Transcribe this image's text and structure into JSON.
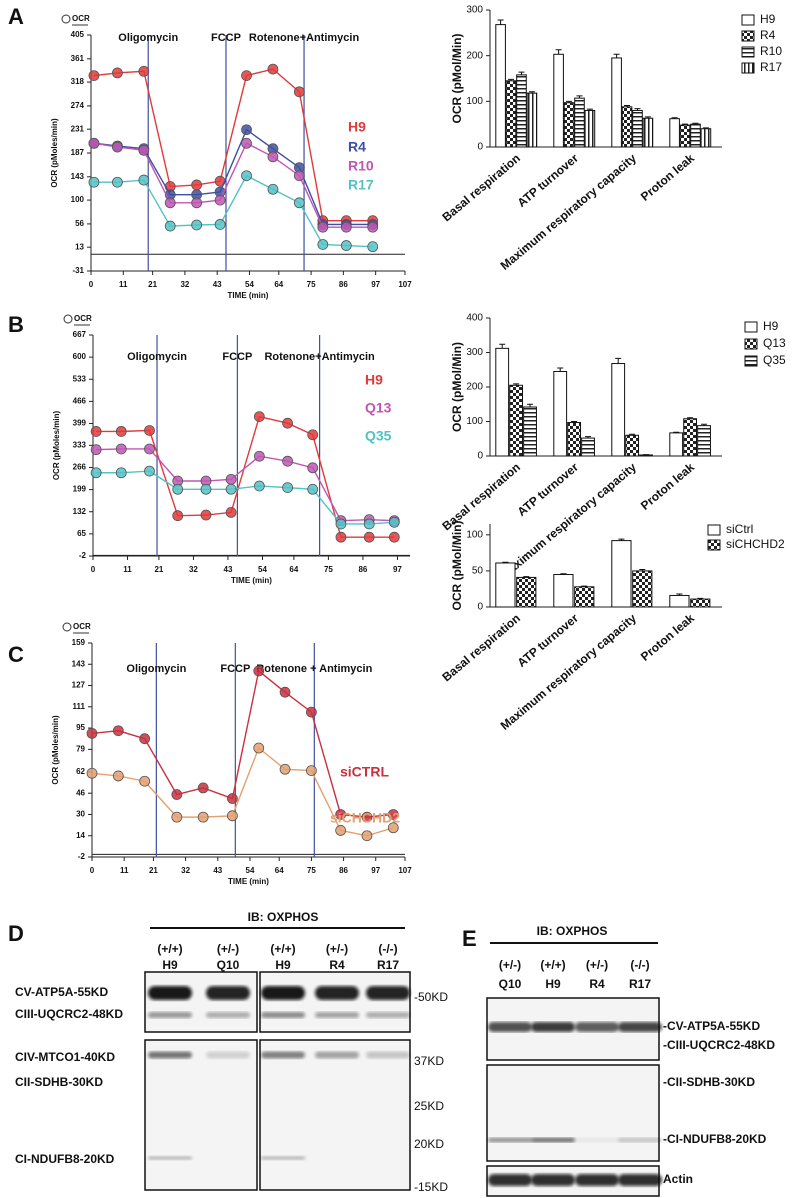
{
  "chart_data": [
    {
      "type": "line",
      "panel": "A",
      "corner_label": "OCR",
      "x_label": "TIME (min)",
      "y_label": "OCR (pMoles/min)",
      "xlim": [
        0,
        107
      ],
      "xticks": [
        0,
        11,
        21,
        32,
        43,
        54,
        64,
        75,
        86,
        97,
        107
      ],
      "ylim": [
        -31,
        405
      ],
      "yticks": [
        -31,
        13,
        56,
        100,
        143,
        187,
        231,
        274,
        318,
        361,
        405
      ],
      "injections": [
        {
          "x": 19.5,
          "label": "Oligomycin"
        },
        {
          "x": 46,
          "label": "FCCP"
        },
        {
          "x": 72.6,
          "label": "Rotenone+Antimycin"
        }
      ],
      "x": [
        1,
        9,
        18,
        27,
        36,
        44,
        53,
        62,
        71,
        79,
        87,
        96
      ],
      "series": [
        {
          "name": "H9",
          "color": "#e03a3a",
          "values": [
            330,
            335,
            338,
            125,
            128,
            135,
            330,
            342,
            300,
            62,
            62,
            62
          ]
        },
        {
          "name": "R4",
          "color": "#3f4fa0",
          "values": [
            205,
            200,
            195,
            110,
            110,
            115,
            230,
            195,
            160,
            55,
            55,
            55
          ]
        },
        {
          "name": "R10",
          "color": "#c056b4",
          "values": [
            205,
            198,
            192,
            95,
            95,
            100,
            205,
            180,
            145,
            50,
            50,
            50
          ]
        },
        {
          "name": "R17",
          "color": "#52c2c6",
          "values": [
            133,
            133,
            137,
            52,
            54,
            55,
            145,
            120,
            95,
            18,
            16,
            14
          ]
        }
      ]
    },
    {
      "type": "line",
      "panel": "B",
      "corner_label": "OCR",
      "x_label": "TIME (min)",
      "y_label": "OCR (pMoles/min)",
      "xlim": [
        0,
        101
      ],
      "xticks": [
        0,
        11,
        21,
        32,
        43,
        54,
        64,
        75,
        86,
        97
      ],
      "ylim": [
        -2,
        667
      ],
      "yticks": [
        -2,
        65,
        132,
        199,
        266,
        333,
        399,
        466,
        533,
        600,
        667
      ],
      "injections": [
        {
          "x": 20.4,
          "label": "Oligomycin"
        },
        {
          "x": 46,
          "label": "FCCP"
        },
        {
          "x": 72.2,
          "label": "Rotenone+Antimycin"
        }
      ],
      "x": [
        1,
        9,
        18,
        27,
        36,
        44,
        53,
        62,
        70,
        79,
        88,
        96
      ],
      "series": [
        {
          "name": "H9",
          "color": "#e03a3a",
          "values": [
            375,
            375,
            378,
            120,
            122,
            130,
            420,
            400,
            365,
            55,
            55,
            55
          ]
        },
        {
          "name": "Q13",
          "color": "#c056b4",
          "values": [
            320,
            322,
            322,
            225,
            225,
            230,
            300,
            285,
            265,
            105,
            108,
            105
          ]
        },
        {
          "name": "Q35",
          "color": "#52c2c6",
          "values": [
            250,
            250,
            255,
            200,
            200,
            200,
            210,
            205,
            200,
            95,
            95,
            100
          ]
        }
      ]
    },
    {
      "type": "line",
      "panel": "C",
      "corner_label": "OCR",
      "x_label": "TIME (min)",
      "y_label": "OCR (pMoles/min)",
      "xlim": [
        0,
        107
      ],
      "xticks": [
        0,
        11,
        21,
        32,
        43,
        54,
        64,
        75,
        86,
        97,
        107
      ],
      "ylim": [
        -2,
        159
      ],
      "yticks": [
        -2,
        14,
        30,
        46,
        62,
        79,
        95,
        111,
        127,
        143,
        159
      ],
      "injections": [
        {
          "x": 22,
          "label": "Oligomycin"
        },
        {
          "x": 49,
          "label": "FCCP"
        },
        {
          "x": 76,
          "label": "Rotenone + Antimycin"
        }
      ],
      "x": [
        0,
        9,
        18,
        29,
        38,
        48,
        57,
        66,
        75,
        85,
        94,
        103
      ],
      "series": [
        {
          "name": "siCTRL",
          "color": "#c8303e",
          "values": [
            91,
            93,
            87,
            45,
            50,
            42,
            138,
            122,
            107,
            30,
            28,
            30
          ]
        },
        {
          "name": "siCHCHD2",
          "color": "#e3a070",
          "values": [
            61,
            59,
            55,
            28,
            28,
            29,
            80,
            64,
            63,
            18,
            14,
            20
          ]
        }
      ]
    },
    {
      "type": "bar",
      "y_label": "OCR (pMol/Min)",
      "categories": [
        "Basal respiration",
        "ATP turnover",
        "Maximum respiratory capacity",
        "Proton leak"
      ],
      "ylim": [
        0,
        300
      ],
      "yticks": [
        0,
        100,
        200,
        300
      ],
      "series": [
        {
          "name": "H9",
          "pattern": "none",
          "values": [
            268,
            203,
            195,
            62
          ],
          "errors": [
            10,
            10,
            8,
            2
          ]
        },
        {
          "name": "R4",
          "pattern": "checker",
          "values": [
            145,
            97,
            88,
            48
          ],
          "errors": [
            3,
            3,
            3,
            2
          ]
        },
        {
          "name": "R10",
          "pattern": "hstripe",
          "values": [
            158,
            107,
            80,
            50
          ],
          "errors": [
            6,
            5,
            4,
            2
          ]
        },
        {
          "name": "R17",
          "pattern": "vstripe",
          "values": [
            118,
            80,
            63,
            40
          ],
          "errors": [
            3,
            3,
            3,
            2
          ]
        }
      ]
    },
    {
      "type": "bar",
      "y_label": "OCR (pMol/Min)",
      "categories": [
        "Basal respiration",
        "ATP turnover",
        "Maximum respiratory capacity",
        "Proton leak"
      ],
      "ylim": [
        0,
        400
      ],
      "yticks": [
        0,
        100,
        200,
        300,
        400
      ],
      "series": [
        {
          "name": "H9",
          "pattern": "none",
          "values": [
            312,
            245,
            268,
            67
          ],
          "errors": [
            12,
            10,
            15,
            2
          ]
        },
        {
          "name": "Q13",
          "pattern": "checker",
          "values": [
            205,
            97,
            60,
            108
          ],
          "errors": [
            4,
            3,
            3,
            3
          ]
        },
        {
          "name": "Q35",
          "pattern": "hstripe",
          "values": [
            142,
            52,
            3,
            88
          ],
          "errors": [
            8,
            4,
            1,
            4
          ]
        }
      ]
    },
    {
      "type": "bar",
      "y_label": "OCR (pMol/Min)",
      "categories": [
        "Basal respiration",
        "ATP turnover",
        "Maximum respiratory capacity",
        "Proton leak"
      ],
      "ylim": [
        0,
        115
      ],
      "yticks": [
        0,
        50,
        100
      ],
      "series": [
        {
          "name": "siCtrl",
          "pattern": "none",
          "values": [
            61,
            45,
            92,
            16
          ],
          "errors": [
            1,
            1,
            2,
            2
          ]
        },
        {
          "name": "siCHCHD2",
          "pattern": "checker",
          "values": [
            41,
            28,
            50,
            11
          ],
          "errors": [
            1,
            1,
            2,
            1
          ]
        }
      ]
    }
  ],
  "blots": [
    {
      "panel": "D",
      "title": "IB: OXPHOS",
      "genotypes": [
        "(+/+)",
        "(+/-)",
        "(+/+)",
        "(+/-)",
        "(-/-)"
      ],
      "lanes": [
        "H9",
        "Q10",
        "H9",
        "R4",
        "R17"
      ],
      "left_labels": [
        "CV-ATP5A-55KD",
        "CIII-UQCRC2-48KD",
        "CIV-MTCO1-40KD",
        "CII-SDHB-30KD",
        "CI-NDUFB8-20KD"
      ],
      "right_labels": [
        "-50KD",
        "37KD",
        "25KD",
        "20KD",
        "-15KD"
      ]
    },
    {
      "panel": "E",
      "title": "IB: OXPHOS",
      "genotypes": [
        "(+/-)",
        "(+/+)",
        "(+/-)",
        "(-/-)"
      ],
      "lanes": [
        "Q10",
        "H9",
        "R4",
        "R17"
      ],
      "right_labels": [
        "-CV-ATP5A-55KD",
        "-CIII-UQCRC2-48KD",
        "-CII-SDHB-30KD",
        "-CI-NDUFB8-20KD",
        "Actin"
      ]
    }
  ]
}
